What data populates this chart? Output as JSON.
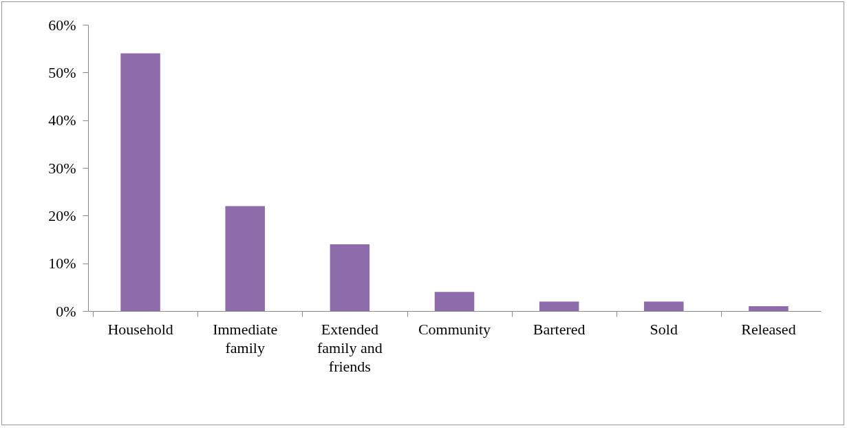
{
  "chart_data": {
    "type": "bar",
    "categories": [
      "Household",
      "Immediate family",
      "Extended family and friends",
      "Community",
      "Bartered",
      "Sold",
      "Released"
    ],
    "values": [
      54,
      22,
      14,
      4,
      2,
      2,
      1
    ],
    "color": "#8e6bab",
    "ylim": [
      0,
      60
    ],
    "yticks": [
      {
        "value": 0,
        "label": "0%"
      },
      {
        "value": 10,
        "label": "10%"
      },
      {
        "value": 20,
        "label": "20%"
      },
      {
        "value": 30,
        "label": "30%"
      },
      {
        "value": 40,
        "label": "40%"
      },
      {
        "value": 50,
        "label": "50%"
      },
      {
        "value": 60,
        "label": "60%"
      }
    ]
  }
}
